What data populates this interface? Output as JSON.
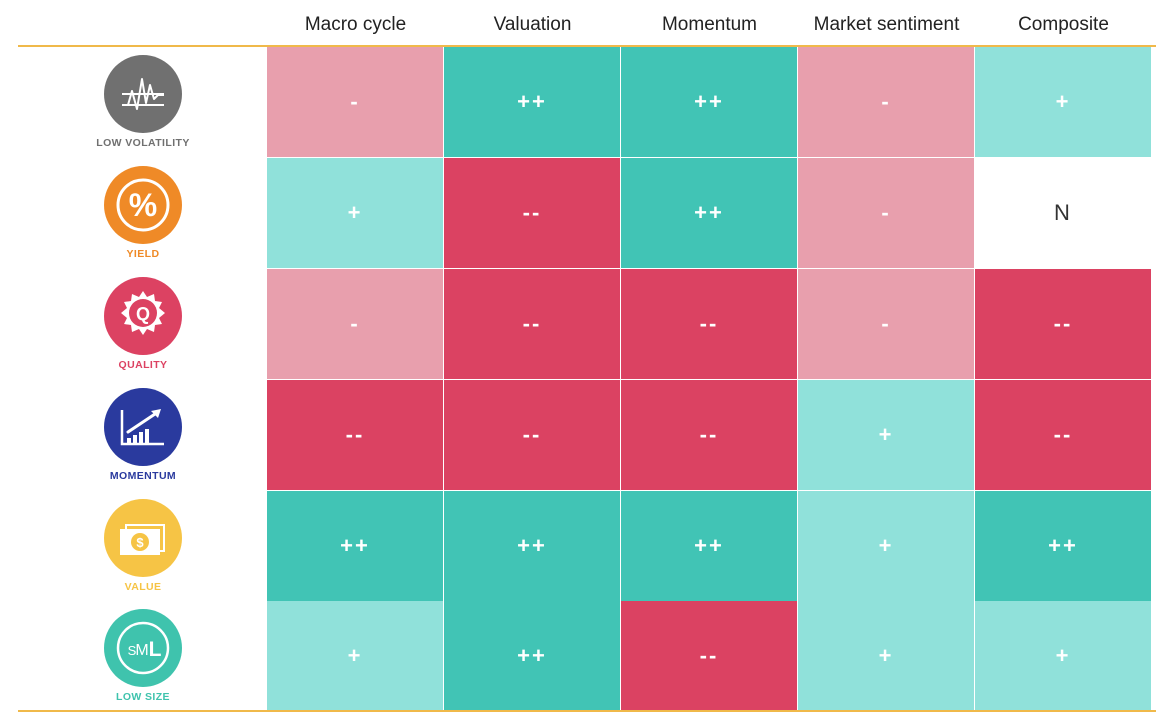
{
  "columns": [
    "Macro cycle",
    "Valuation",
    "Momentum",
    "Market sentiment",
    "Composite"
  ],
  "colors": {
    "strong_positive": "#41c4b5",
    "positive": "#90e1da",
    "neutral": "#ffffff",
    "negative": "#e89fad",
    "strong_negative": "#db4262",
    "accent_rule": "#f0b94a"
  },
  "rows": [
    {
      "label": "LOW VOLATILITY",
      "icon": "low-volatility-icon",
      "icon_color": "#707070",
      "cells": [
        {
          "text": "-",
          "level": "m"
        },
        {
          "text": "++",
          "level": "pp"
        },
        {
          "text": "++",
          "level": "pp"
        },
        {
          "text": "-",
          "level": "m"
        },
        {
          "text": "+",
          "level": "p"
        }
      ]
    },
    {
      "label": "YIELD",
      "icon": "percent-icon",
      "icon_color": "#ef8a27",
      "cells": [
        {
          "text": "+",
          "level": "p"
        },
        {
          "text": "--",
          "level": "mm"
        },
        {
          "text": "++",
          "level": "pp"
        },
        {
          "text": "-",
          "level": "m"
        },
        {
          "text": "N",
          "level": "n"
        }
      ]
    },
    {
      "label": "QUALITY",
      "icon": "quality-seal-icon",
      "icon_color": "#dc4262",
      "cells": [
        {
          "text": "-",
          "level": "m"
        },
        {
          "text": "--",
          "level": "mm"
        },
        {
          "text": "--",
          "level": "mm"
        },
        {
          "text": "-",
          "level": "m"
        },
        {
          "text": "--",
          "level": "mm"
        }
      ]
    },
    {
      "label": "MOMENTUM",
      "icon": "trend-chart-icon",
      "icon_color": "#2a3a9e",
      "cells": [
        {
          "text": "--",
          "level": "mm"
        },
        {
          "text": "--",
          "level": "mm"
        },
        {
          "text": "--",
          "level": "mm"
        },
        {
          "text": "+",
          "level": "p"
        },
        {
          "text": "--",
          "level": "mm"
        }
      ]
    },
    {
      "label": "VALUE",
      "icon": "dollar-bill-icon",
      "icon_color": "#f6c445",
      "cells": [
        {
          "text": "++",
          "level": "pp"
        },
        {
          "text": "++",
          "level": "pp"
        },
        {
          "text": "++",
          "level": "pp"
        },
        {
          "text": "+",
          "level": "p"
        },
        {
          "text": "++",
          "level": "pp"
        }
      ]
    },
    {
      "label": "LOW SIZE",
      "icon": "sml-size-icon",
      "icon_color": "#3fc3ad",
      "cells": [
        {
          "text": "+",
          "level": "p"
        },
        {
          "text": "++",
          "level": "pp"
        },
        {
          "text": "--",
          "level": "mm"
        },
        {
          "text": "+",
          "level": "p"
        },
        {
          "text": "+",
          "level": "p"
        }
      ]
    }
  ]
}
